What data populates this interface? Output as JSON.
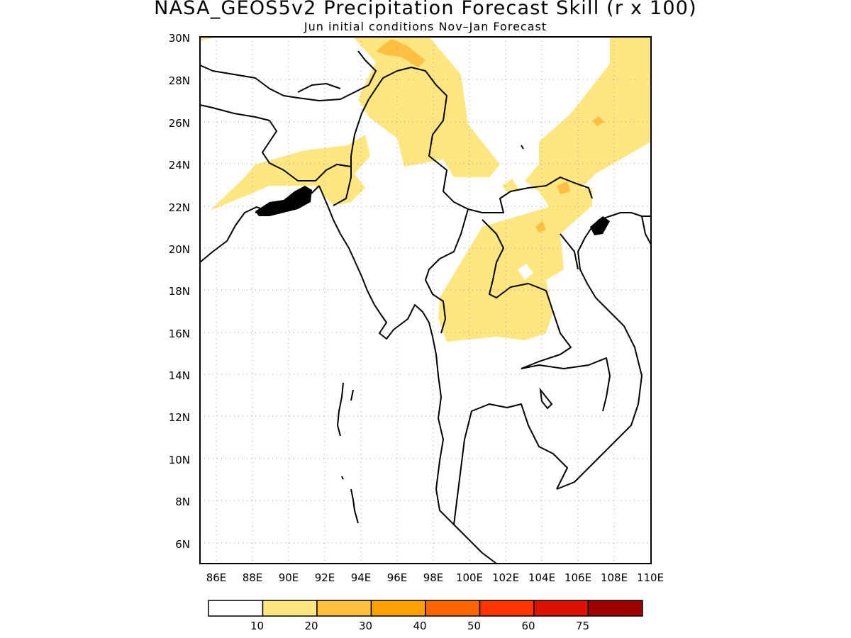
{
  "title": "NASA_GEOS5v2 Precipitation Forecast Skill (r x 100)",
  "subtitle": "Jun initial conditions  Nov–Jan Forecast",
  "map": {
    "lon_range": [
      85,
      110
    ],
    "lat_range": [
      5,
      30
    ],
    "grid": "dotted",
    "lat_labels": [
      "30N",
      "28N",
      "26N",
      "24N",
      "22N",
      "20N",
      "18N",
      "16N",
      "14N",
      "12N",
      "10N",
      "8N",
      "6N"
    ],
    "lon_labels": [
      "86E",
      "88E",
      "90E",
      "92E",
      "94E",
      "96E",
      "98E",
      "100E",
      "102E",
      "104E",
      "106E",
      "108E",
      "110E"
    ]
  },
  "colorbar": {
    "colors": [
      "#ffffff",
      "#ffe680",
      "#ffbf40",
      "#ff9f00",
      "#ff6600",
      "#ff3300",
      "#dd1100",
      "#a00000"
    ],
    "labels": [
      "10",
      "20",
      "30",
      "40",
      "50",
      "60",
      "75"
    ]
  }
}
